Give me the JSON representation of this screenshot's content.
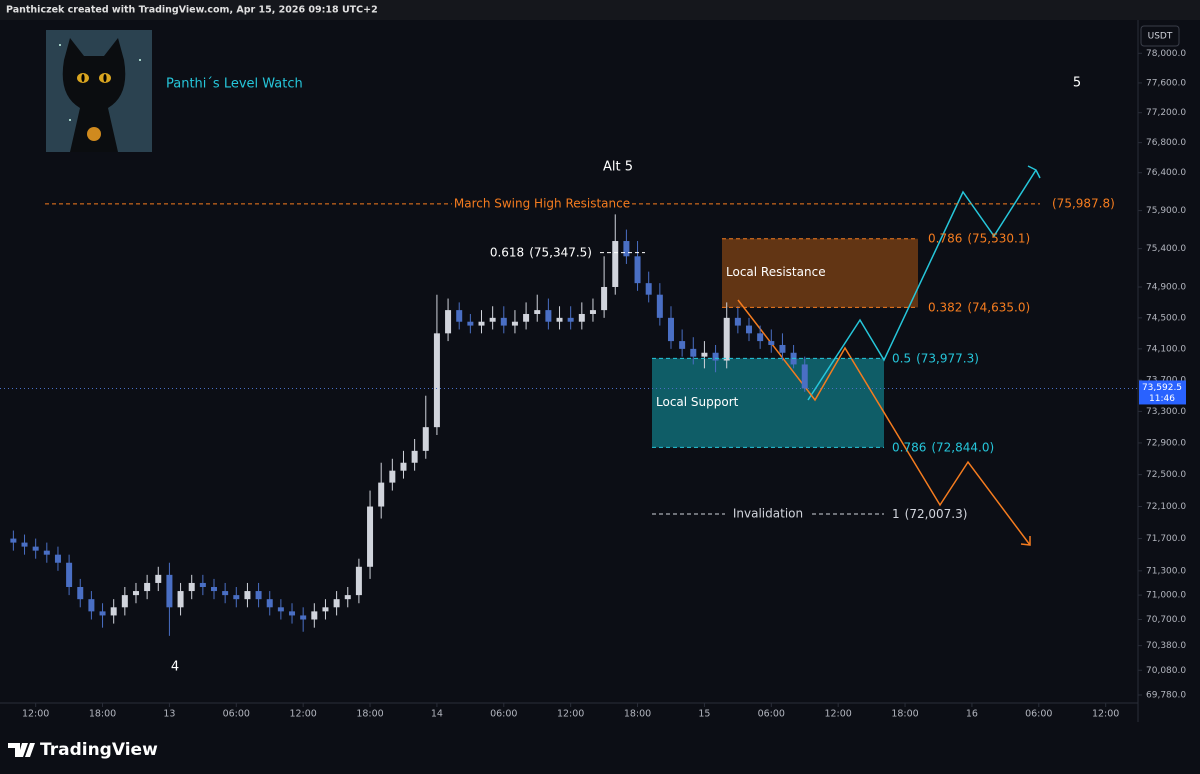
{
  "header": {
    "text": "Panthiczek created with TradingView.com, Apr 15, 2026 09:18 UTC+2"
  },
  "footer": {
    "brand": "TradingView"
  },
  "chart_data": {
    "type": "candlestick",
    "title": "Panthi´s Level Watch",
    "currency": "USDT",
    "log_scale": true,
    "grid": false,
    "up_color": "#d1d4dc",
    "down_color": "#4a6fc4",
    "x": [
      10,
      11,
      12,
      13,
      14,
      15,
      16,
      17,
      18,
      19,
      20,
      21,
      22,
      23,
      24,
      25,
      26,
      27,
      28,
      29,
      30,
      31,
      32,
      33,
      34,
      35,
      36,
      37,
      38,
      39,
      40,
      41,
      42,
      43,
      44,
      45,
      46,
      47,
      48,
      49,
      50,
      51,
      52,
      53,
      54,
      55,
      56,
      57,
      58,
      59,
      60,
      61,
      62,
      63,
      64,
      65,
      66,
      67,
      68,
      69,
      70,
      71,
      72,
      73,
      74,
      75,
      76,
      77,
      78,
      79,
      80,
      81
    ],
    "ohlc": {
      "open": [
        71700,
        71650,
        71600,
        71550,
        71500,
        71400,
        71100,
        70950,
        70800,
        70750,
        70850,
        71000,
        71050,
        71150,
        71250,
        70850,
        71050,
        71150,
        71100,
        71050,
        71000,
        70950,
        71050,
        70950,
        70850,
        70800,
        70750,
        70700,
        70800,
        70850,
        70950,
        71000,
        71350,
        72100,
        72400,
        72550,
        72650,
        72800,
        73100,
        74300,
        74600,
        74450,
        74400,
        74450,
        74500,
        74400,
        74450,
        74550,
        74600,
        74450,
        74500,
        74450,
        74550,
        74600,
        74900,
        75500,
        75300,
        74950,
        74800,
        74500,
        74200,
        74100,
        74000,
        74050,
        73950,
        74500,
        74400,
        74300,
        74200,
        74150,
        74050,
        73900
      ],
      "high": [
        71800,
        71750,
        71700,
        71650,
        71600,
        71500,
        71200,
        71050,
        70900,
        70950,
        71100,
        71150,
        71250,
        71350,
        71400,
        71150,
        71250,
        71250,
        71200,
        71150,
        71100,
        71150,
        71150,
        71050,
        70950,
        70900,
        70850,
        70900,
        70950,
        71050,
        71100,
        71450,
        72300,
        72650,
        72700,
        72800,
        72950,
        73500,
        74800,
        74750,
        74700,
        74550,
        74600,
        74650,
        74650,
        74600,
        74700,
        74800,
        74750,
        74650,
        74650,
        74700,
        74750,
        75300,
        75850,
        75650,
        75500,
        75100,
        74950,
        74650,
        74350,
        74250,
        74200,
        74150,
        74700,
        74650,
        74500,
        74400,
        74350,
        74300,
        74150,
        74000
      ],
      "low": [
        71550,
        71500,
        71450,
        71400,
        71300,
        71000,
        70850,
        70700,
        70600,
        70650,
        70750,
        70900,
        70950,
        71050,
        70500,
        70750,
        70950,
        71000,
        70950,
        70900,
        70850,
        70850,
        70850,
        70750,
        70700,
        70650,
        70550,
        70600,
        70700,
        70750,
        70850,
        70900,
        71200,
        71950,
        72300,
        72450,
        72550,
        72700,
        73000,
        74200,
        74350,
        74300,
        74300,
        74350,
        74300,
        74300,
        74350,
        74450,
        74350,
        74350,
        74350,
        74350,
        74450,
        74500,
        74800,
        75200,
        74850,
        74700,
        74400,
        74100,
        74000,
        73900,
        73850,
        73800,
        73850,
        74300,
        74200,
        74100,
        74050,
        73950,
        73850,
        73550
      ],
      "close": [
        71650,
        71600,
        71550,
        71500,
        71400,
        71100,
        70950,
        70800,
        70750,
        70850,
        71000,
        71050,
        71150,
        71250,
        70850,
        71050,
        71150,
        71100,
        71050,
        71000,
        70950,
        71050,
        70950,
        70850,
        70800,
        70750,
        70700,
        70800,
        70850,
        70950,
        71000,
        71350,
        72100,
        72400,
        72550,
        72650,
        72800,
        73100,
        74300,
        74600,
        74450,
        74400,
        74450,
        74500,
        74400,
        74450,
        74550,
        74600,
        74450,
        74500,
        74450,
        74550,
        74600,
        74900,
        75500,
        75300,
        74950,
        74800,
        74500,
        74200,
        74100,
        74000,
        74050,
        73950,
        74500,
        74400,
        74300,
        74200,
        74150,
        74050,
        73900,
        73592.5
      ]
    },
    "xlim": [
      8.8,
      110.9
    ],
    "xticks": [
      {
        "value": 12,
        "label": "12:00"
      },
      {
        "value": 18,
        "label": "18:00"
      },
      {
        "value": 24,
        "label": "13"
      },
      {
        "value": 30,
        "label": "06:00"
      },
      {
        "value": 36,
        "label": "12:00"
      },
      {
        "value": 42,
        "label": "18:00"
      },
      {
        "value": 48,
        "label": "14"
      },
      {
        "value": 54,
        "label": "06:00"
      },
      {
        "value": 60,
        "label": "12:00"
      },
      {
        "value": 66,
        "label": "18:00"
      },
      {
        "value": 72,
        "label": "15"
      },
      {
        "value": 78,
        "label": "06:00"
      },
      {
        "value": 84,
        "label": "12:00"
      },
      {
        "value": 90,
        "label": "18:00"
      },
      {
        "value": 96,
        "label": "16"
      },
      {
        "value": 102,
        "label": "06:00"
      },
      {
        "value": 108,
        "label": "12:00"
      }
    ],
    "ylim": [
      69683,
      78425
    ],
    "yticks": [
      {
        "value": 69780,
        "label": "69,780.0"
      },
      {
        "value": 70080,
        "label": "70,080.0"
      },
      {
        "value": 70380,
        "label": "70,380.0"
      },
      {
        "value": 70700,
        "label": "70,700.0"
      },
      {
        "value": 71000,
        "label": "71,000.0"
      },
      {
        "value": 71300,
        "label": "71,300.0"
      },
      {
        "value": 71700,
        "label": "71,700.0"
      },
      {
        "value": 72100,
        "label": "72,100.0"
      },
      {
        "value": 72500,
        "label": "72,500.0"
      },
      {
        "value": 72900,
        "label": "72,900.0"
      },
      {
        "value": 73300,
        "label": "73,300.0"
      },
      {
        "value": 73700,
        "label": "73,700.0"
      },
      {
        "value": 74100,
        "label": "74,100.0"
      },
      {
        "value": 74500,
        "label": "74,500.0"
      },
      {
        "value": 74900,
        "label": "74,900.0"
      },
      {
        "value": 75400,
        "label": "75,400.0"
      },
      {
        "value": 75900,
        "label": "75,900.0"
      },
      {
        "value": 76400,
        "label": "76,400.0"
      },
      {
        "value": 76800,
        "label": "76,800.0"
      },
      {
        "value": 77200,
        "label": "77,200.0"
      },
      {
        "value": 77600,
        "label": "77,600.0"
      },
      {
        "value": 78000,
        "label": "78,000.0"
      }
    ],
    "last_price": {
      "value": 73592.5,
      "label": "73,592.5"
    },
    "last_price_countdown": "11:46",
    "levels": [
      {
        "label": "March Swing High Resistance",
        "value": 75987.8,
        "value_label": "(75,987.8)",
        "color": "#f57c1f"
      },
      {
        "ratio": "0.618",
        "value": 75347.5,
        "value_label": "(75,347.5)",
        "color": "#ffffff"
      },
      {
        "ratio": "0.786",
        "value": 75530.1,
        "value_label": "(75,530.1)",
        "color": "#f57c1f"
      },
      {
        "ratio": "0.382",
        "value": 74635.0,
        "value_label": "(74,635.0)",
        "color": "#f57c1f"
      },
      {
        "ratio": "0.5",
        "value": 73977.3,
        "value_label": "(73,977.3)",
        "color": "#26c6da"
      },
      {
        "ratio": "0.786",
        "value": 72844.0,
        "value_label": "(72,844.0)",
        "color": "#26c6da"
      },
      {
        "ratio": "1",
        "label": "Invalidation",
        "value": 72007.3,
        "value_label": "(72,007.3)",
        "color": "#d1d4dc"
      }
    ],
    "zones": [
      {
        "label": "Local Resistance",
        "color": "#6b3a14"
      },
      {
        "label": "Local Support",
        "color": "#0f6670"
      }
    ],
    "annotations": [
      "Alt 5",
      "5",
      "4"
    ]
  }
}
